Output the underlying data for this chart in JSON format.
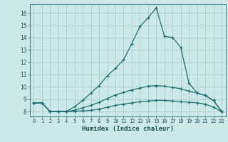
{
  "xlabel": "Humidex (Indice chaleur)",
  "background_color": "#cce8e8",
  "grid_color": "#aacccc",
  "line_color": "#1a7070",
  "xlim": [
    -0.5,
    23.5
  ],
  "ylim": [
    7.6,
    16.7
  ],
  "xticks": [
    0,
    1,
    2,
    3,
    4,
    5,
    6,
    7,
    8,
    9,
    10,
    11,
    12,
    13,
    14,
    15,
    16,
    17,
    18,
    19,
    20,
    21,
    22,
    23
  ],
  "yticks": [
    8,
    9,
    10,
    11,
    12,
    13,
    14,
    15,
    16
  ],
  "line1_x": [
    0,
    1,
    2,
    3,
    4,
    5,
    6,
    7,
    8,
    9,
    10,
    11,
    12,
    13,
    14,
    15,
    16,
    17,
    18,
    19,
    20,
    21,
    22,
    23
  ],
  "line1_y": [
    8.7,
    8.7,
    8.0,
    8.0,
    8.0,
    8.4,
    8.9,
    9.5,
    10.1,
    10.9,
    11.5,
    12.2,
    13.5,
    14.9,
    15.6,
    16.4,
    14.1,
    14.0,
    13.2,
    10.3,
    9.5,
    9.3,
    8.9,
    8.0
  ],
  "line2_x": [
    0,
    1,
    2,
    3,
    4,
    5,
    6,
    7,
    8,
    9,
    10,
    11,
    12,
    13,
    14,
    15,
    16,
    17,
    18,
    19,
    20,
    21,
    22,
    23
  ],
  "line2_y": [
    8.7,
    8.7,
    8.0,
    8.0,
    8.0,
    8.1,
    8.3,
    8.5,
    8.75,
    9.05,
    9.35,
    9.55,
    9.75,
    9.9,
    10.05,
    10.1,
    10.05,
    9.95,
    9.85,
    9.65,
    9.5,
    9.3,
    8.9,
    8.0
  ],
  "line3_x": [
    0,
    1,
    2,
    3,
    4,
    5,
    6,
    7,
    8,
    9,
    10,
    11,
    12,
    13,
    14,
    15,
    16,
    17,
    18,
    19,
    20,
    21,
    22,
    23
  ],
  "line3_y": [
    8.7,
    8.7,
    8.0,
    8.0,
    8.0,
    8.02,
    8.05,
    8.1,
    8.2,
    8.35,
    8.5,
    8.6,
    8.7,
    8.8,
    8.85,
    8.9,
    8.9,
    8.85,
    8.8,
    8.75,
    8.7,
    8.6,
    8.35,
    8.0
  ]
}
